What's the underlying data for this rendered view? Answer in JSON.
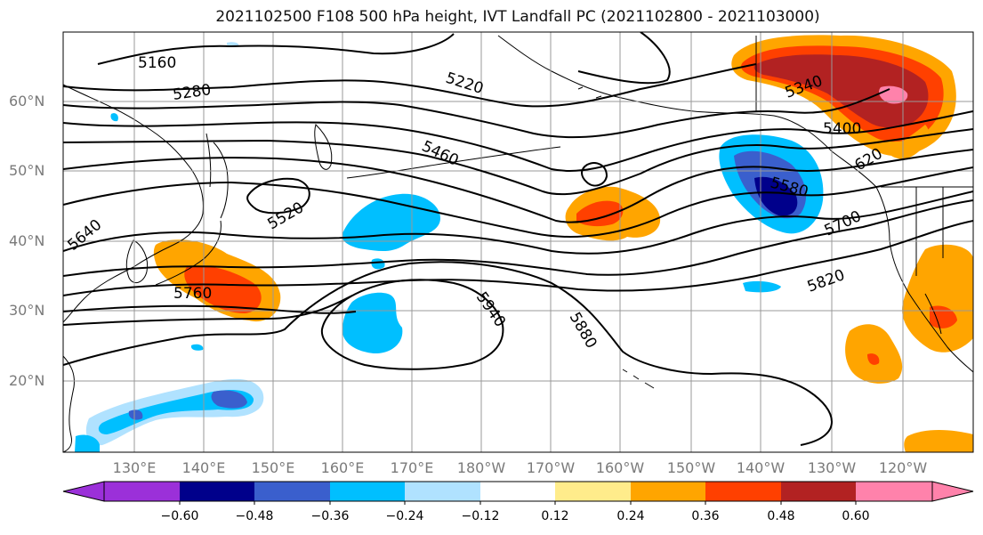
{
  "title": "2021102500 F108 500 hPa height, IVT Landfall PC (2021102800 - 2021103000)",
  "lat_labels": [
    "60°N",
    "50°N",
    "40°N",
    "30°N",
    "20°N"
  ],
  "lon_labels": [
    "130°E",
    "140°E",
    "150°E",
    "160°E",
    "170°E",
    "180°W",
    "170°W",
    "160°W",
    "150°W",
    "140°W",
    "130°W",
    "120°W"
  ],
  "contour_labels": [
    "5160",
    "5280",
    "5220",
    "5340",
    "5400",
    "5460",
    "5520",
    "5580",
    "5640",
    "5700",
    "5760",
    "5820",
    "5880",
    "5940",
    "620"
  ],
  "colorbar": {
    "tick_labels": [
      "−0.60",
      "−0.48",
      "−0.36",
      "−0.24",
      "−0.12",
      "0.12",
      "0.24",
      "0.36",
      "0.48",
      "0.60"
    ],
    "colors": [
      "#9b30d9",
      "#00008b",
      "#3a5fcd",
      "#00bfff",
      "#b0e2ff",
      "#ffffff",
      "#ffec8b",
      "#ffa500",
      "#ff4000",
      "#b22222",
      "#ff82ab"
    ]
  },
  "colors": {
    "axis_label": "#7a7a7a",
    "grid": "#999999",
    "contour": "#000000"
  }
}
